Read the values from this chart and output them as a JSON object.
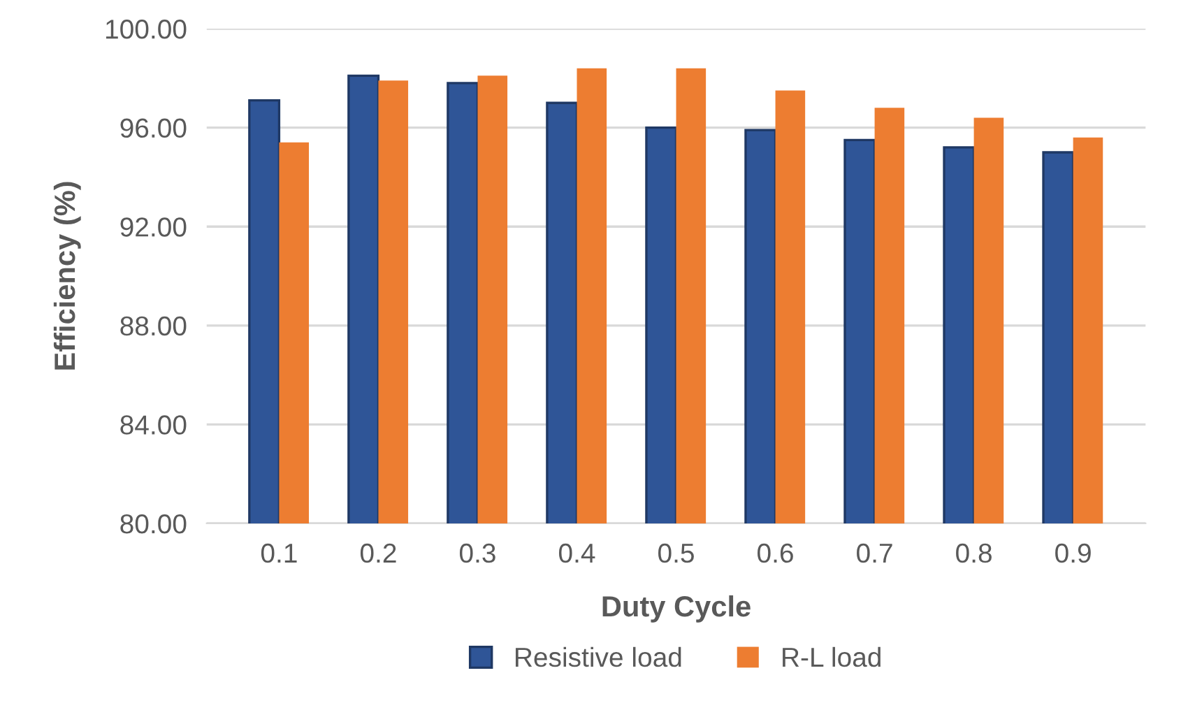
{
  "chart_data": {
    "type": "bar",
    "xlabel": "Duty Cycle",
    "ylabel": "Efficiency (%)",
    "categories": [
      "0.1",
      "0.2",
      "0.3",
      "0.4",
      "0.5",
      "0.6",
      "0.7",
      "0.8",
      "0.9"
    ],
    "series": [
      {
        "name": "Resistive load",
        "color": "#2f5597",
        "values": [
          97.1,
          98.1,
          97.8,
          97.0,
          96.0,
          95.9,
          95.5,
          95.2,
          95.0
        ]
      },
      {
        "name": "R-L load",
        "color": "#ed7d31",
        "values": [
          95.4,
          97.9,
          98.1,
          98.4,
          98.4,
          97.5,
          96.8,
          96.4,
          95.6
        ]
      }
    ],
    "ylim": [
      80,
      100
    ],
    "yticks": [
      {
        "value": 80,
        "label": "80.00"
      },
      {
        "value": 84,
        "label": "84.00"
      },
      {
        "value": 88,
        "label": "88.00"
      },
      {
        "value": 92,
        "label": "92.00"
      },
      {
        "value": 96,
        "label": "96.00"
      },
      {
        "value": 100,
        "label": "100.00"
      }
    ],
    "grid": "y",
    "legend": "bottom"
  }
}
